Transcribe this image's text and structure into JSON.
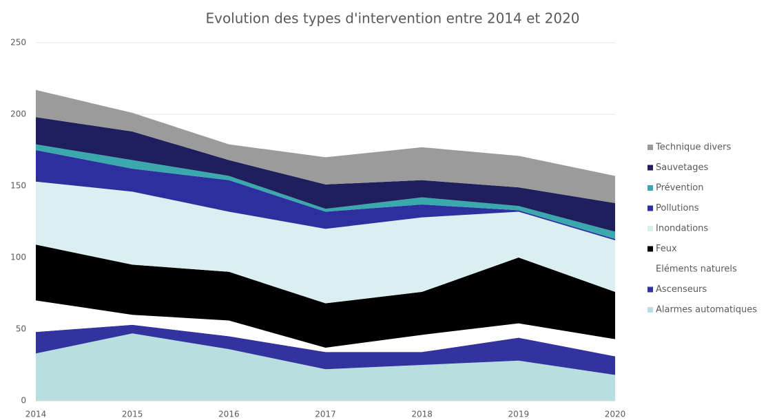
{
  "chart_data": {
    "type": "stacked_area",
    "title": "Evolution des types d'intervention entre 2014 et 2020",
    "x": [
      2014,
      2015,
      2016,
      2017,
      2018,
      2019,
      2020
    ],
    "xlim": [
      2014,
      2020
    ],
    "xticks": [
      2014,
      2015,
      2016,
      2017,
      2018,
      2019,
      2020
    ],
    "ylim": [
      0,
      250
    ],
    "yticks": [
      0,
      50,
      100,
      150,
      200,
      250
    ],
    "grid": true,
    "legend": "right",
    "series": [
      {
        "name": "Alarmes automatiques",
        "color": "#b7dfe0",
        "values": [
          33,
          47,
          36,
          22,
          25,
          28,
          18
        ]
      },
      {
        "name": "Ascenseurs",
        "color": "#3333a0",
        "values": [
          15,
          6,
          9,
          12,
          9,
          16,
          13
        ]
      },
      {
        "name": "Eléments naturels",
        "color": "#ffffff",
        "values": [
          22,
          7,
          11,
          3,
          12,
          10,
          12
        ]
      },
      {
        "name": "Feux",
        "color": "#000000",
        "values": [
          39,
          35,
          34,
          31,
          30,
          46,
          33
        ]
      },
      {
        "name": "Inondations",
        "color": "#dbeef1",
        "values": [
          44,
          51,
          42,
          52,
          52,
          32,
          36
        ]
      },
      {
        "name": "Pollutions",
        "color": "#2e2f9e",
        "values": [
          22,
          16,
          22,
          12,
          9,
          1,
          1
        ]
      },
      {
        "name": "Prévention",
        "color": "#3aa8ad",
        "values": [
          4,
          6,
          3,
          2,
          5,
          3,
          5
        ]
      },
      {
        "name": "Sauvetages",
        "color": "#1f1f5e",
        "values": [
          19,
          20,
          11,
          17,
          12,
          13,
          20
        ]
      },
      {
        "name": "Technique divers",
        "color": "#9b9b9b",
        "values": [
          19,
          13,
          11,
          19,
          23,
          22,
          19
        ]
      }
    ]
  }
}
